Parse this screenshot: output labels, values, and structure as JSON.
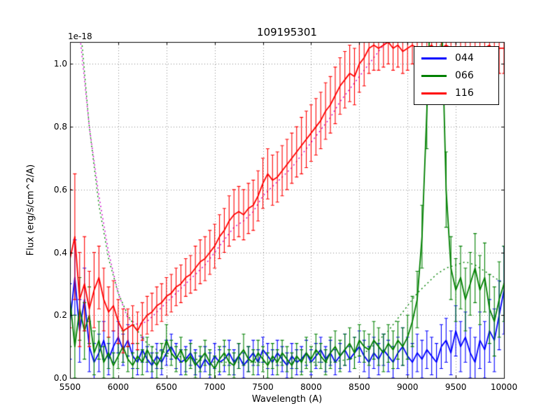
{
  "figure": {
    "title": "109195301",
    "xlabel": "Wavelength (A)",
    "ylabel": "Flux (erg/s/cm^2/A)",
    "offset_text": "1e-18",
    "background_color": "#ffffff",
    "grid_color": "#8a8a8a",
    "frame_color": "#000000"
  },
  "legend": {
    "position": "upper right",
    "entries": [
      {
        "label": "044",
        "color": "#0000ff"
      },
      {
        "label": "066",
        "color": "#008000"
      },
      {
        "label": "116",
        "color": "#ff0000"
      }
    ]
  },
  "chart_data": {
    "type": "line",
    "title": "109195301",
    "xlabel": "Wavelength (A)",
    "ylabel": "Flux (erg/s/cm^2/A)",
    "y_scale_factor": "1e-18",
    "xlim": [
      5500,
      10000
    ],
    "ylim": [
      0,
      1.07
    ],
    "grid": true,
    "legend_position": "upper right",
    "xticks": [
      5500,
      6000,
      6500,
      7000,
      7500,
      8000,
      8500,
      9000,
      9500,
      10000
    ],
    "xtick_labels": [
      "5500",
      "6000",
      "6500",
      "7000",
      "7500",
      "8000",
      "8500",
      "9000",
      "9500",
      "10000"
    ],
    "yticks": [
      0.0,
      0.2,
      0.4,
      0.6,
      0.8,
      1.0
    ],
    "ytick_labels": [
      "0.0",
      "0.2",
      "0.4",
      "0.6",
      "0.8",
      "1.0"
    ],
    "x": [
      5500,
      5550,
      5600,
      5650,
      5700,
      5750,
      5800,
      5850,
      5900,
      5950,
      6000,
      6050,
      6100,
      6150,
      6200,
      6250,
      6300,
      6350,
      6400,
      6450,
      6500,
      6550,
      6600,
      6650,
      6700,
      6750,
      6800,
      6850,
      6900,
      6950,
      7000,
      7050,
      7100,
      7150,
      7200,
      7250,
      7300,
      7350,
      7400,
      7450,
      7500,
      7550,
      7600,
      7650,
      7700,
      7750,
      7800,
      7850,
      7900,
      7950,
      8000,
      8050,
      8100,
      8150,
      8200,
      8250,
      8300,
      8350,
      8400,
      8450,
      8500,
      8550,
      8600,
      8650,
      8700,
      8750,
      8800,
      8850,
      8900,
      8950,
      9000,
      9050,
      9100,
      9150,
      9200,
      9250,
      9300,
      9350,
      9400,
      9450,
      9500,
      9550,
      9600,
      9650,
      9700,
      9750,
      9800,
      9850,
      9900,
      9950,
      10000
    ],
    "model_x": [
      5500,
      5600,
      5700,
      5800,
      5900,
      6000,
      6100,
      6200,
      6300,
      6400,
      6500,
      6600,
      6700,
      6800,
      6900,
      7000,
      7100,
      7200,
      7300,
      7400,
      7500,
      7600,
      7700,
      7800,
      7900,
      8000,
      8100,
      8200,
      8300,
      8400,
      8500,
      8600,
      8700,
      8800,
      8900,
      9000,
      9100,
      9200,
      9300,
      9400,
      9500,
      9600,
      9700,
      9800,
      9900,
      10000
    ],
    "series": [
      {
        "name": "116-model",
        "color": "#cc00cc",
        "style": "dotted",
        "in_legend": false,
        "use_x": "model_x",
        "y": [
          1.6,
          1.1,
          0.8,
          0.58,
          0.4,
          0.27,
          0.19,
          0.17,
          0.18,
          0.21,
          0.24,
          0.27,
          0.3,
          0.33,
          0.36,
          0.4,
          0.44,
          0.48,
          0.5,
          0.53,
          0.58,
          0.61,
          0.64,
          0.67,
          0.71,
          0.75,
          0.79,
          0.83,
          0.88,
          0.92,
          0.96,
          1.0,
          1.04,
          1.08,
          1.1,
          1.12,
          1.13,
          1.14,
          1.14,
          1.15,
          1.15,
          1.15,
          1.15,
          1.15,
          1.15,
          1.15
        ]
      },
      {
        "name": "066-model",
        "color": "#008000",
        "style": "dotted",
        "in_legend": false,
        "use_x": "model_x",
        "y": [
          1.7,
          1.15,
          0.8,
          0.55,
          0.38,
          0.27,
          0.2,
          0.15,
          0.11,
          0.09,
          0.08,
          0.07,
          0.065,
          0.06,
          0.055,
          0.05,
          0.05,
          0.05,
          0.05,
          0.05,
          0.05,
          0.05,
          0.05,
          0.05,
          0.05,
          0.05,
          0.05,
          0.05,
          0.055,
          0.06,
          0.07,
          0.09,
          0.12,
          0.15,
          0.19,
          0.23,
          0.27,
          0.3,
          0.33,
          0.35,
          0.36,
          0.37,
          0.36,
          0.34,
          0.32,
          0.3
        ]
      },
      {
        "name": "044",
        "color": "#0000ff",
        "style": "solid",
        "in_legend": true,
        "y": [
          0.18,
          0.32,
          0.15,
          0.25,
          0.1,
          0.05,
          0.08,
          0.12,
          0.06,
          0.1,
          0.13,
          0.09,
          0.12,
          0.07,
          0.05,
          0.09,
          0.06,
          0.04,
          0.07,
          0.05,
          0.08,
          0.1,
          0.07,
          0.05,
          0.06,
          0.08,
          0.05,
          0.03,
          0.06,
          0.04,
          0.07,
          0.05,
          0.06,
          0.08,
          0.05,
          0.07,
          0.04,
          0.06,
          0.08,
          0.05,
          0.09,
          0.07,
          0.05,
          0.08,
          0.06,
          0.04,
          0.07,
          0.05,
          0.06,
          0.08,
          0.05,
          0.07,
          0.09,
          0.06,
          0.08,
          0.05,
          0.07,
          0.09,
          0.06,
          0.08,
          0.1,
          0.07,
          0.05,
          0.08,
          0.06,
          0.09,
          0.07,
          0.05,
          0.08,
          0.1,
          0.07,
          0.05,
          0.08,
          0.06,
          0.09,
          0.07,
          0.05,
          0.1,
          0.12,
          0.08,
          0.15,
          0.1,
          0.13,
          0.08,
          0.05,
          0.12,
          0.09,
          0.15,
          0.12,
          0.2,
          0.28
        ],
        "yerr": [
          0.12,
          0.12,
          0.1,
          0.1,
          0.08,
          0.06,
          0.06,
          0.06,
          0.05,
          0.05,
          0.05,
          0.05,
          0.05,
          0.04,
          0.04,
          0.04,
          0.04,
          0.04,
          0.04,
          0.04,
          0.04,
          0.04,
          0.04,
          0.04,
          0.04,
          0.04,
          0.04,
          0.04,
          0.04,
          0.04,
          0.04,
          0.04,
          0.04,
          0.04,
          0.04,
          0.04,
          0.04,
          0.04,
          0.04,
          0.04,
          0.04,
          0.04,
          0.04,
          0.04,
          0.04,
          0.04,
          0.04,
          0.04,
          0.04,
          0.04,
          0.04,
          0.04,
          0.04,
          0.04,
          0.04,
          0.04,
          0.04,
          0.05,
          0.04,
          0.05,
          0.05,
          0.05,
          0.05,
          0.05,
          0.05,
          0.05,
          0.05,
          0.05,
          0.05,
          0.06,
          0.06,
          0.06,
          0.06,
          0.06,
          0.06,
          0.06,
          0.06,
          0.07,
          0.07,
          0.07,
          0.08,
          0.08,
          0.08,
          0.08,
          0.08,
          0.09,
          0.09,
          0.1,
          0.1,
          0.11,
          0.14
        ]
      },
      {
        "name": "066",
        "color": "#008000",
        "style": "solid",
        "in_legend": true,
        "y": [
          0.25,
          0.1,
          0.22,
          0.15,
          0.2,
          0.08,
          0.12,
          0.05,
          0.08,
          0.04,
          0.07,
          0.1,
          0.06,
          0.04,
          0.07,
          0.05,
          0.09,
          0.06,
          0.04,
          0.07,
          0.12,
          0.08,
          0.06,
          0.09,
          0.05,
          0.07,
          0.04,
          0.06,
          0.08,
          0.05,
          0.03,
          0.06,
          0.08,
          0.05,
          0.04,
          0.07,
          0.09,
          0.06,
          0.05,
          0.08,
          0.06,
          0.04,
          0.07,
          0.05,
          0.08,
          0.06,
          0.04,
          0.07,
          0.05,
          0.08,
          0.06,
          0.09,
          0.07,
          0.05,
          0.08,
          0.1,
          0.07,
          0.09,
          0.11,
          0.08,
          0.12,
          0.1,
          0.09,
          0.12,
          0.1,
          0.08,
          0.11,
          0.09,
          0.12,
          0.1,
          0.13,
          0.18,
          0.25,
          0.45,
          0.85,
          1.3,
          1.55,
          1.2,
          0.6,
          0.35,
          0.28,
          0.32,
          0.25,
          0.3,
          0.35,
          0.28,
          0.32,
          0.22,
          0.18,
          0.25,
          0.3
        ],
        "yerr": [
          0.15,
          0.1,
          0.1,
          0.09,
          0.09,
          0.07,
          0.06,
          0.05,
          0.05,
          0.04,
          0.04,
          0.05,
          0.04,
          0.04,
          0.04,
          0.04,
          0.04,
          0.04,
          0.04,
          0.04,
          0.05,
          0.04,
          0.04,
          0.04,
          0.04,
          0.04,
          0.04,
          0.04,
          0.04,
          0.04,
          0.04,
          0.04,
          0.04,
          0.04,
          0.04,
          0.04,
          0.05,
          0.04,
          0.04,
          0.04,
          0.04,
          0.04,
          0.04,
          0.04,
          0.04,
          0.04,
          0.04,
          0.04,
          0.04,
          0.05,
          0.04,
          0.05,
          0.04,
          0.04,
          0.05,
          0.05,
          0.05,
          0.05,
          0.05,
          0.05,
          0.05,
          0.05,
          0.05,
          0.06,
          0.06,
          0.06,
          0.06,
          0.06,
          0.06,
          0.06,
          0.07,
          0.08,
          0.09,
          0.1,
          0.12,
          0.15,
          0.15,
          0.14,
          0.12,
          0.1,
          0.1,
          0.1,
          0.1,
          0.1,
          0.11,
          0.11,
          0.11,
          0.11,
          0.11,
          0.12,
          0.12
        ]
      },
      {
        "name": "116",
        "color": "#ff0000",
        "style": "solid",
        "in_legend": true,
        "y": [
          0.38,
          0.45,
          0.25,
          0.3,
          0.22,
          0.28,
          0.32,
          0.25,
          0.21,
          0.23,
          0.18,
          0.15,
          0.16,
          0.17,
          0.15,
          0.18,
          0.2,
          0.21,
          0.23,
          0.24,
          0.26,
          0.27,
          0.29,
          0.3,
          0.32,
          0.33,
          0.35,
          0.37,
          0.38,
          0.4,
          0.42,
          0.45,
          0.47,
          0.5,
          0.52,
          0.53,
          0.52,
          0.54,
          0.55,
          0.58,
          0.62,
          0.65,
          0.63,
          0.64,
          0.66,
          0.68,
          0.7,
          0.72,
          0.74,
          0.76,
          0.78,
          0.8,
          0.82,
          0.85,
          0.87,
          0.9,
          0.93,
          0.95,
          0.97,
          0.96,
          1.0,
          1.02,
          1.05,
          1.06,
          1.05,
          1.06,
          1.07,
          1.05,
          1.06,
          1.04,
          1.05,
          1.06,
          1.05,
          1.04,
          1.05,
          1.06,
          1.04,
          1.05,
          1.06,
          1.05,
          1.04,
          1.05,
          1.03,
          1.04,
          1.05,
          1.04,
          1.05,
          1.06,
          1.04,
          1.05,
          1.05
        ],
        "yerr": [
          0.22,
          0.2,
          0.15,
          0.15,
          0.12,
          0.12,
          0.1,
          0.1,
          0.08,
          0.08,
          0.07,
          0.07,
          0.06,
          0.06,
          0.06,
          0.06,
          0.06,
          0.06,
          0.06,
          0.06,
          0.06,
          0.06,
          0.06,
          0.06,
          0.06,
          0.06,
          0.07,
          0.07,
          0.07,
          0.07,
          0.07,
          0.07,
          0.07,
          0.08,
          0.08,
          0.08,
          0.08,
          0.08,
          0.08,
          0.08,
          0.08,
          0.08,
          0.08,
          0.08,
          0.08,
          0.08,
          0.08,
          0.08,
          0.09,
          0.09,
          0.09,
          0.09,
          0.09,
          0.09,
          0.09,
          0.09,
          0.09,
          0.09,
          0.09,
          0.09,
          0.09,
          0.09,
          0.08,
          0.08,
          0.07,
          0.07,
          0.07,
          0.07,
          0.07,
          0.07,
          0.07,
          0.06,
          0.06,
          0.06,
          0.06,
          0.06,
          0.06,
          0.06,
          0.06,
          0.06,
          0.06,
          0.07,
          0.07,
          0.07,
          0.07,
          0.08,
          0.08,
          0.08,
          0.08,
          0.08,
          0.08
        ]
      }
    ]
  }
}
